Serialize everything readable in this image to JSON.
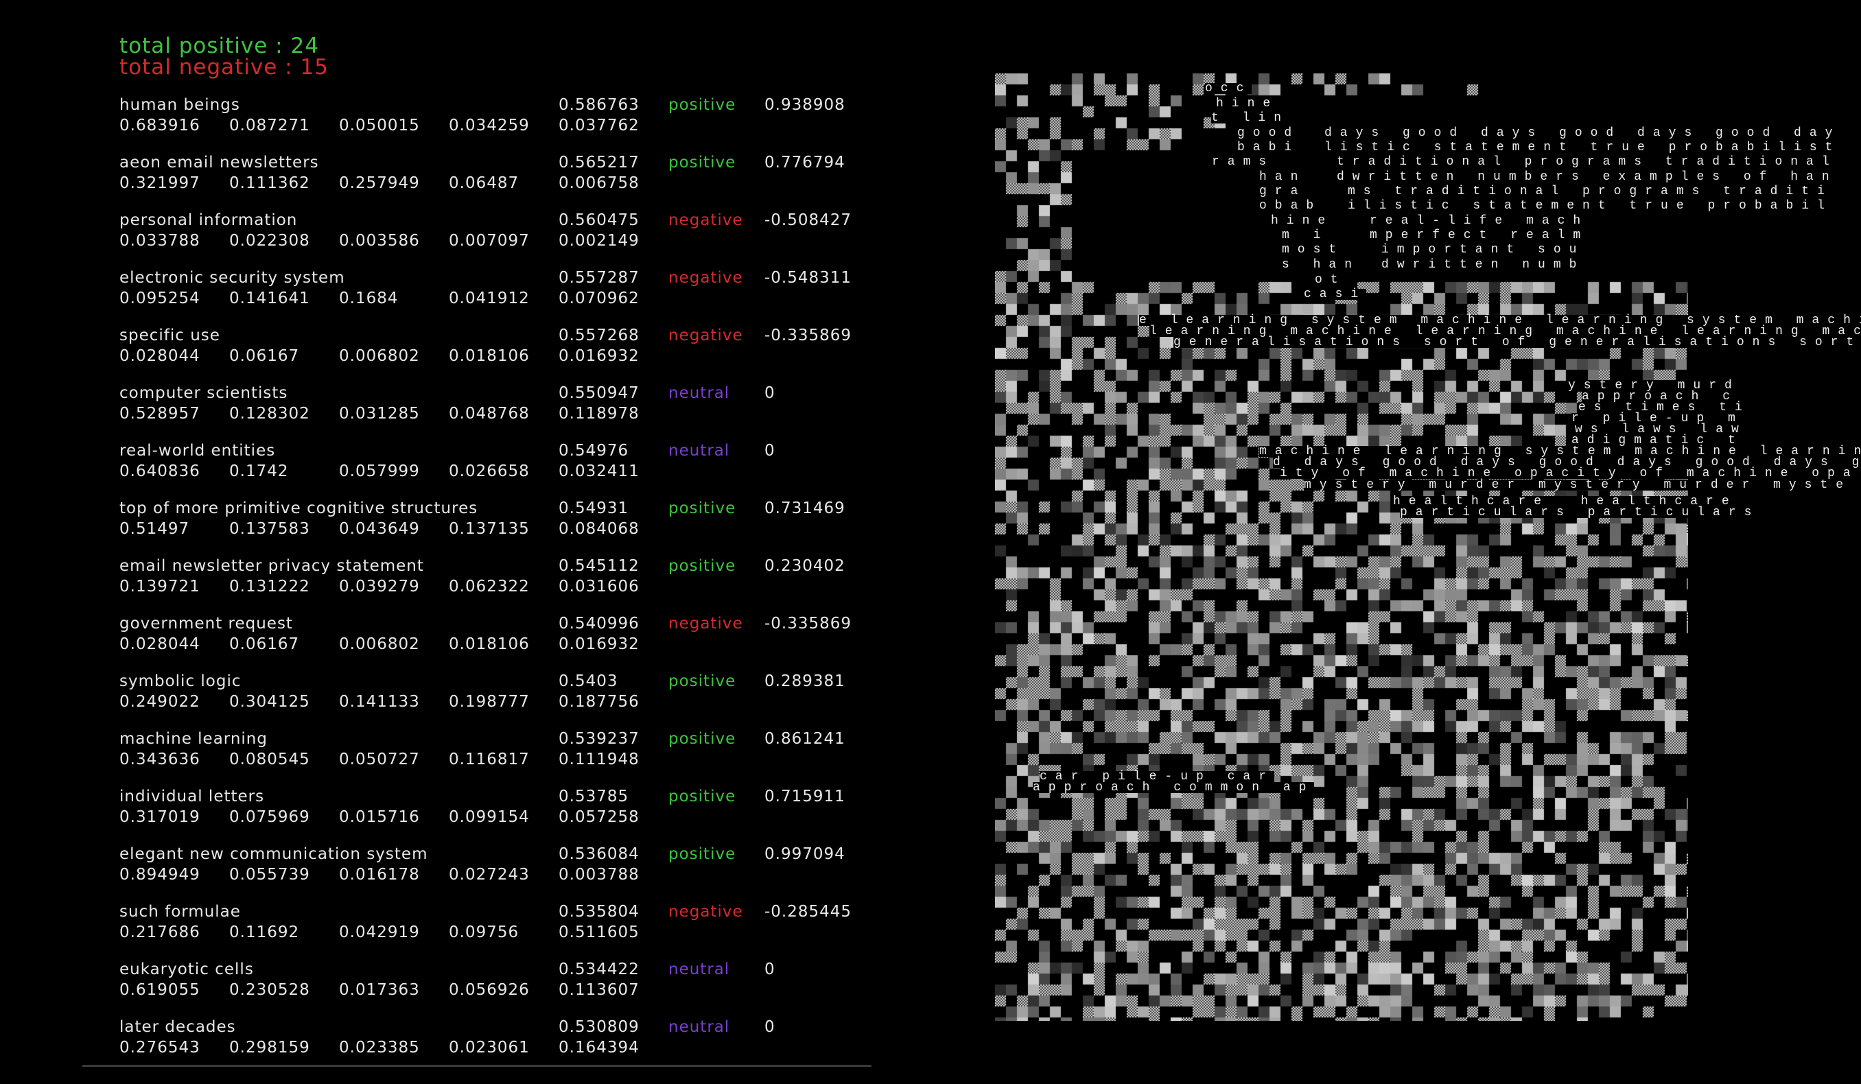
{
  "totals": {
    "positive": "total positive : 24",
    "negative": "total negative : 15"
  },
  "colors": {
    "positive": "#3ec43e",
    "negative": "#d42a2a",
    "neutral": "#7a3fd0"
  },
  "rows": [
    {
      "term": "human beings",
      "score": "0.586763",
      "sentiment": "positive",
      "polarity": "0.938908",
      "values": [
        "0.683916",
        "0.087271",
        "0.050015",
        "0.034259",
        "0.037762"
      ]
    },
    {
      "term": "aeon email newsletters",
      "score": "0.565217",
      "sentiment": "positive",
      "polarity": "0.776794",
      "values": [
        "0.321997",
        "0.111362",
        "0.257949",
        "0.06487",
        "0.006758"
      ]
    },
    {
      "term": "personal information",
      "score": "0.560475",
      "sentiment": "negative",
      "polarity": "-0.508427",
      "values": [
        "0.033788",
        "0.022308",
        "0.003586",
        "0.007097",
        "0.002149"
      ]
    },
    {
      "term": "electronic security system",
      "score": "0.557287",
      "sentiment": "negative",
      "polarity": "-0.548311",
      "values": [
        "0.095254",
        "0.141641",
        "0.1684",
        "0.041912",
        "0.070962"
      ]
    },
    {
      "term": "specific use",
      "score": "0.557268",
      "sentiment": "negative",
      "polarity": "-0.335869",
      "values": [
        "0.028044",
        "0.06167",
        "0.006802",
        "0.018106",
        "0.016932"
      ]
    },
    {
      "term": "computer scientists",
      "score": "0.550947",
      "sentiment": "neutral",
      "polarity": "0",
      "values": [
        "0.528957",
        "0.128302",
        "0.031285",
        "0.048768",
        "0.118978"
      ]
    },
    {
      "term": "real-world entities",
      "score": "0.54976",
      "sentiment": "neutral",
      "polarity": "0",
      "values": [
        "0.640836",
        "0.1742",
        "0.057999",
        "0.026658",
        "0.032411"
      ]
    },
    {
      "term": "top of more primitive cognitive structures",
      "score": "0.54931",
      "sentiment": "positive",
      "polarity": "0.731469",
      "values": [
        "0.51497",
        "0.137583",
        "0.043649",
        "0.137135",
        "0.084068"
      ]
    },
    {
      "term": "email newsletter privacy statement",
      "score": "0.545112",
      "sentiment": "positive",
      "polarity": "0.230402",
      "values": [
        "0.139721",
        "0.131222",
        "0.039279",
        "0.062322",
        "0.031606"
      ]
    },
    {
      "term": "government request",
      "score": "0.540996",
      "sentiment": "negative",
      "polarity": "-0.335869",
      "values": [
        "0.028044",
        "0.06167",
        "0.006802",
        "0.018106",
        "0.016932"
      ]
    },
    {
      "term": "symbolic logic",
      "score": "0.5403",
      "sentiment": "positive",
      "polarity": "0.289381",
      "values": [
        "0.249022",
        "0.304125",
        "0.141133",
        "0.198777",
        "0.187756"
      ]
    },
    {
      "term": "machine learning",
      "score": "0.539237",
      "sentiment": "positive",
      "polarity": "0.861241",
      "values": [
        "0.343636",
        "0.080545",
        "0.050727",
        "0.116817",
        "0.111948"
      ]
    },
    {
      "term": "individual letters",
      "score": "0.53785",
      "sentiment": "positive",
      "polarity": "0.715911",
      "values": [
        "0.317019",
        "0.075969",
        "0.015716",
        "0.099154",
        "0.057258"
      ]
    },
    {
      "term": "elegant new communication system",
      "score": "0.536084",
      "sentiment": "positive",
      "polarity": "0.997094",
      "values": [
        "0.894949",
        "0.055739",
        "0.016178",
        "0.027243",
        "0.003788"
      ]
    },
    {
      "term": "such formulae",
      "score": "0.535804",
      "sentiment": "negative",
      "polarity": "-0.285445",
      "values": [
        "0.217686",
        "0.11692",
        "0.042919",
        "0.09756",
        "0.511605"
      ]
    },
    {
      "term": "eukaryotic cells",
      "score": "0.534422",
      "sentiment": "neutral",
      "polarity": "0",
      "values": [
        "0.619055",
        "0.230528",
        "0.017363",
        "0.056926",
        "0.113607"
      ]
    },
    {
      "term": "later decades",
      "score": "0.530809",
      "sentiment": "neutral",
      "polarity": "0",
      "values": [
        "0.276543",
        "0.298159",
        "0.023385",
        "0.023061",
        "0.164394"
      ]
    }
  ],
  "art_text": [
    "occ",
    "hine",
    "t lin",
    "good",
    "days good days good days good day",
    "babi",
    "listic statement true probabilist",
    "rams",
    "traditional programs traditional",
    "han",
    "dwritten numbers examples of han",
    "gra",
    "ms traditional programs traditi",
    "obab",
    "ilistic statement true probabil",
    "hine",
    "real-life mach",
    "m i",
    "mperfect realm",
    "most",
    "important sou",
    "s han",
    "dwritten numb",
    "ot",
    "casi",
    "e learning system machine learning system machine",
    "learning machine learning machine learning machin",
    "generalisations sort of generalisations sort of",
    "ystery murd",
    "approach c",
    "es times ti",
    "r pile-up m",
    "ws laws law",
    "adigmatic t",
    "machine learning system machine learnin",
    "d days good days good days good days g",
    "ity of machine opacity of machine opa",
    "mystery murder mystery murder myste",
    "healthcare  healthcare",
    "particulars particulars",
    "car pile-up car",
    "approach common ap"
  ]
}
